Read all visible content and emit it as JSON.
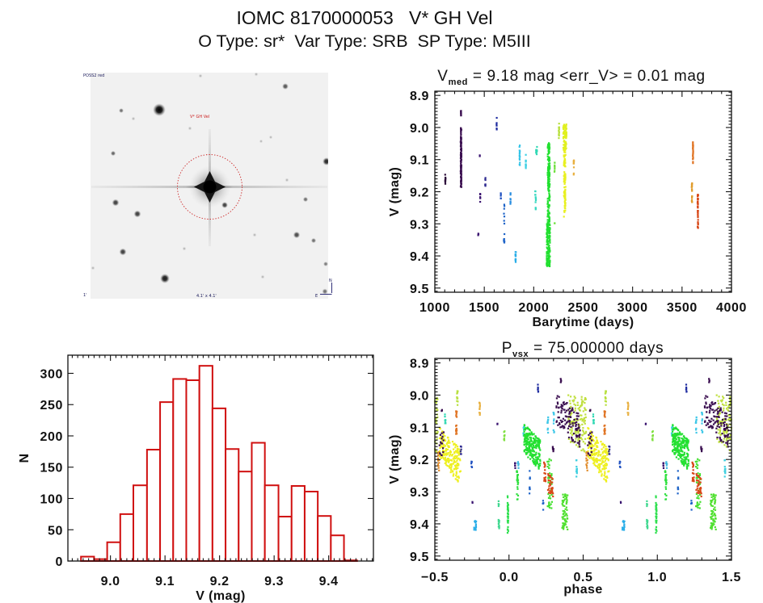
{
  "header": {
    "title": "IOMC 8170000053   V* GH Vel",
    "subtitle": "O Type: sr*  Var Type: SRB  SP Type: M5III"
  },
  "sky_image": {
    "survey_label": "POSS2 red",
    "target_label": "V* GH Vel",
    "scale_label": "1'",
    "fov_label": "4.1' x 4.1'",
    "compass_north": "N",
    "compass_east": "E",
    "target_circle_color": "#cc2222",
    "compass_color": "#1a1a6a"
  },
  "chart_data": [
    {
      "id": "light-curve",
      "type": "scatter",
      "title": {
        "main": "V",
        "sub": "med",
        "rest": " = 9.18 mag <err_V> = 0.01 mag"
      },
      "v_median": 9.18,
      "err_v_mean": 0.01,
      "xlabel": "Barytime (days)",
      "ylabel": "V (mag)",
      "xlim": [
        1000,
        4000
      ],
      "ylim": [
        8.887,
        9.513
      ],
      "y_inverted": true,
      "xticks": [
        1000,
        1500,
        2000,
        2500,
        3000,
        3500,
        4000
      ],
      "xtick_labels": [
        "1000",
        "1500",
        "2000",
        "2500",
        "3000",
        "3500",
        "4000"
      ],
      "x_minor": 100,
      "yticks": [
        8.9,
        9.0,
        9.1,
        9.2,
        9.3,
        9.4,
        9.5
      ],
      "ytick_labels": [
        "8.9",
        "9.0",
        "9.1",
        "9.2",
        "9.3",
        "9.4",
        "9.5"
      ],
      "y_minor": 0.01,
      "grid": false,
      "color_coding": "rainbow by observation time",
      "clusters": [
        {
          "t": [
            1104,
            1108
          ],
          "v": [
            9.146,
            9.176
          ],
          "color": "#2a0a38",
          "n": 10
        },
        {
          "t": [
            1263,
            1266
          ],
          "v": [
            8.942,
            8.966
          ],
          "color": "#3b0f50",
          "n": 8
        },
        {
          "t": [
            1261,
            1269
          ],
          "v": [
            8.997,
            9.187
          ],
          "color": "#3b0f50",
          "n": 110
        },
        {
          "t": [
            1453,
            1455
          ],
          "v": [
            9.085,
            9.092
          ],
          "color": "#3a1470",
          "n": 2
        },
        {
          "t": [
            1458,
            1460
          ],
          "v": [
            9.204,
            9.236
          ],
          "color": "#3a1470",
          "n": 7
        },
        {
          "t": [
            1438,
            1442
          ],
          "v": [
            9.33,
            9.336
          ],
          "color": "#3a1470",
          "n": 3
        },
        {
          "t": [
            1510,
            1512
          ],
          "v": [
            9.156,
            9.183
          ],
          "color": "#2e2a90",
          "n": 8
        },
        {
          "t": [
            1624,
            1626
          ],
          "v": [
            8.963,
            9.007
          ],
          "color": "#1f2ca0",
          "n": 6
        },
        {
          "t": [
            1667,
            1669
          ],
          "v": [
            9.204,
            9.222
          ],
          "color": "#1f50c0",
          "n": 5
        },
        {
          "t": [
            1698,
            1704
          ],
          "v": [
            9.236,
            9.362
          ],
          "color": "#1f64c8",
          "n": 16
        },
        {
          "t": [
            1764,
            1766
          ],
          "v": [
            9.197,
            9.24
          ],
          "color": "#2a8ee0",
          "n": 8
        },
        {
          "t": [
            1815,
            1820
          ],
          "v": [
            9.387,
            9.42
          ],
          "color": "#2aaee8",
          "n": 14
        },
        {
          "t": [
            1856,
            1860
          ],
          "v": [
            9.051,
            9.118
          ],
          "color": "#34c4e8",
          "n": 14
        },
        {
          "t": [
            1919,
            1922
          ],
          "v": [
            9.085,
            9.133
          ],
          "color": "#40d0e4",
          "n": 10
        },
        {
          "t": [
            2024,
            2034
          ],
          "v": [
            9.06,
            9.09
          ],
          "color": "#30d8b4",
          "n": 14
        },
        {
          "t": [
            2015,
            2022
          ],
          "v": [
            9.197,
            9.258
          ],
          "color": "#38d8c0",
          "n": 12
        },
        {
          "t": [
            2140,
            2162
          ],
          "v": [
            9.047,
            9.3
          ],
          "color": "#22e030",
          "n": 160
        },
        {
          "t": [
            2131,
            2165
          ],
          "v": [
            9.3,
            9.433
          ],
          "color": "#22e030",
          "n": 150
        },
        {
          "t": [
            2210,
            2213
          ],
          "v": [
            9.107,
            9.139
          ],
          "color": "#70e040",
          "n": 8
        },
        {
          "t": [
            2210,
            2213
          ],
          "v": [
            9.295,
            9.299
          ],
          "color": "#70e040",
          "n": 2
        },
        {
          "t": [
            2253,
            2258
          ],
          "v": [
            8.982,
            9.034
          ],
          "color": "#b8e040",
          "n": 14
        },
        {
          "t": [
            2298,
            2332
          ],
          "v": [
            8.99,
            9.07
          ],
          "color": "#e0f020",
          "n": 80
        },
        {
          "t": [
            2305,
            2322
          ],
          "v": [
            9.07,
            9.286
          ],
          "color": "#e8f020",
          "n": 90
        },
        {
          "t": [
            2403,
            2407
          ],
          "v": [
            9.096,
            9.149
          ],
          "color": "#e8b040",
          "n": 10
        },
        {
          "t": [
            3609,
            3613
          ],
          "v": [
            9.045,
            9.118
          ],
          "color": "#e07424",
          "n": 22
        },
        {
          "t": [
            3598,
            3602
          ],
          "v": [
            9.173,
            9.238
          ],
          "color": "#e09c2c",
          "n": 18
        },
        {
          "t": [
            3657,
            3663
          ],
          "v": [
            9.208,
            9.322
          ],
          "color": "#d84818",
          "n": 34
        }
      ]
    },
    {
      "id": "histogram",
      "type": "bar",
      "xlabel": "V (mag)",
      "ylabel": "N",
      "xlim": [
        8.922,
        9.482
      ],
      "ylim": [
        0,
        329
      ],
      "y_inverted": false,
      "xticks": [
        9.0,
        9.1,
        9.2,
        9.3,
        9.4
      ],
      "xtick_labels": [
        "9.0",
        "9.1",
        "9.2",
        "9.3",
        "9.4"
      ],
      "x_minor": 0.01,
      "yticks": [
        0,
        50,
        100,
        150,
        200,
        250,
        300
      ],
      "ytick_labels": [
        "0",
        "50",
        "100",
        "150",
        "200",
        "250",
        "300"
      ],
      "y_minor": null,
      "grid": false,
      "bar_color": "#d01010",
      "bin_edges": [
        8.946,
        8.97,
        8.994,
        9.018,
        9.042,
        9.067,
        9.091,
        9.115,
        9.139,
        9.163,
        9.187,
        9.211,
        9.235,
        9.259,
        9.283,
        9.308,
        9.332,
        9.356,
        9.38,
        9.404,
        9.428,
        9.452
      ],
      "values": [
        7,
        3,
        30,
        75,
        121,
        178,
        254,
        291,
        289,
        312,
        244,
        179,
        143,
        189,
        121,
        71,
        120,
        111,
        72,
        41,
        1
      ]
    },
    {
      "id": "phase-curve",
      "type": "scatter",
      "title": {
        "main": "P",
        "sub": "vsx",
        "rest": " = 75.000000 days"
      },
      "period_days": 75.0,
      "xlabel": "phase",
      "ylabel": "V (mag)",
      "xlim": [
        -0.5,
        1.5
      ],
      "ylim": [
        8.886,
        9.513
      ],
      "y_inverted": true,
      "xticks": [
        -0.5,
        0.0,
        0.5,
        1.0,
        1.5
      ],
      "xtick_labels": [
        "−0.5",
        "0.0",
        "0.5",
        "1.0",
        "1.5"
      ],
      "x_minor": 0.1,
      "yticks": [
        8.9,
        9.0,
        9.1,
        9.2,
        9.3,
        9.4,
        9.5
      ],
      "ytick_labels": [
        "8.9",
        "9.0",
        "9.1",
        "9.2",
        "9.3",
        "9.4",
        "9.5"
      ],
      "y_minor": 0.01,
      "grid": false,
      "phase_repeat": [
        -1,
        0,
        1
      ],
      "clusters": [
        {
          "phase": [
            -0.455,
            -0.447
          ],
          "v": [
            9.046,
            9.055
          ],
          "color": "#3b0f50",
          "n": 3
        },
        {
          "phase": [
            -0.47,
            -0.325
          ],
          "v_start": [
            9.1,
            9.19
          ],
          "v_end": [
            9.17,
            9.284
          ],
          "color": "#eef020",
          "n": 180
        },
        {
          "phase": [
            -0.47,
            -0.44
          ],
          "v": [
            9.108,
            9.188
          ],
          "color": "#3b0f50",
          "n": 16
        },
        {
          "phase": [
            -0.432,
            -0.424
          ],
          "v": [
            9.06,
            9.092
          ],
          "color": "#30d8b4",
          "n": 8
        },
        {
          "phase": [
            -0.48,
            -0.47
          ],
          "v": [
            9.176,
            9.243
          ],
          "color": "#e08a28",
          "n": 12
        },
        {
          "phase": [
            -0.358,
            -0.352
          ],
          "v": [
            9.049,
            9.121
          ],
          "color": "#e07424",
          "n": 18
        },
        {
          "phase": [
            -0.351,
            -0.345
          ],
          "v": [
            8.985,
            9.034
          ],
          "color": "#b8e040",
          "n": 12
        },
        {
          "phase": [
            -0.327,
            -0.321
          ],
          "v": [
            9.159,
            9.184
          ],
          "color": "#2e2a90",
          "n": 6
        },
        {
          "phase": [
            -0.2,
            -0.194
          ],
          "v": [
            9.021,
            9.063
          ],
          "color": "#e8b040",
          "n": 10
        },
        {
          "phase": [
            -0.081,
            -0.077
          ],
          "v": [
            9.088,
            9.092
          ],
          "color": "#3a1470",
          "n": 2
        },
        {
          "phase": [
            -0.035,
            -0.029
          ],
          "v": [
            9.111,
            9.142
          ],
          "color": "#80e040",
          "n": 8
        },
        {
          "phase": [
            -0.255,
            -0.249
          ],
          "v": [
            9.205,
            9.226
          ],
          "color": "#1f50c0",
          "n": 5
        },
        {
          "phase": [
            -0.25,
            -0.246
          ],
          "v": [
            9.331,
            9.336
          ],
          "color": "#3a1470",
          "n": 2
        },
        {
          "phase": [
            -0.236,
            -0.221
          ],
          "v": [
            9.389,
            9.422
          ],
          "color": "#2aaee8",
          "n": 14
        },
        {
          "phase": [
            -0.071,
            -0.065
          ],
          "v": [
            9.326,
            9.347
          ],
          "color": "#40d890",
          "n": 5
        },
        {
          "phase": [
            -0.071,
            -0.065
          ],
          "v": [
            9.385,
            9.418
          ],
          "color": "#40d890",
          "n": 10
        },
        {
          "phase": [
            -0.01,
            -0.004
          ],
          "v": [
            9.309,
            9.431
          ],
          "color": "#30e050",
          "n": 36
        },
        {
          "phase": [
            0.039,
            0.045
          ],
          "v": [
            9.205,
            9.234
          ],
          "color": "#3a1470",
          "n": 6
        },
        {
          "phase": [
            0.059,
            0.065
          ],
          "v": [
            9.205,
            9.234
          ],
          "color": "#40b8e0",
          "n": 5
        },
        {
          "phase": [
            0.052,
            0.062
          ],
          "v": [
            9.234,
            9.326
          ],
          "color": "#30e040",
          "n": 24
        },
        {
          "phase": [
            0.096,
            0.102
          ],
          "v": [
            9.088,
            9.126
          ],
          "color": "#40d0e8",
          "n": 8
        },
        {
          "phase": [
            0.102,
            0.211
          ],
          "v_start": [
            9.09,
            9.18
          ],
          "v_end": [
            9.14,
            9.235
          ],
          "color": "#22e030",
          "n": 220
        },
        {
          "phase": [
            0.136,
            0.142
          ],
          "v": [
            9.234,
            9.318
          ],
          "color": "#1f64c8",
          "n": 9
        },
        {
          "phase": [
            0.194,
            0.2
          ],
          "v": [
            8.967,
            9.009
          ],
          "color": "#1f2ca0",
          "n": 6
        },
        {
          "phase": [
            0.227,
            0.233
          ],
          "v": [
            9.322,
            9.36
          ],
          "color": "#1f64c8",
          "n": 5
        },
        {
          "phase": [
            0.259,
            0.265
          ],
          "v": [
            9.063,
            9.117
          ],
          "color": "#40c8e8",
          "n": 10
        },
        {
          "phase": [
            0.299,
            0.305
          ],
          "v": [
            9.05,
            9.117
          ],
          "color": "#40c8e8",
          "n": 10
        },
        {
          "phase": [
            0.258,
            0.292
          ],
          "v": [
            9.197,
            9.355
          ],
          "color": "#44e030",
          "n": 40
        },
        {
          "phase": [
            0.233,
            0.247
          ],
          "v": [
            9.209,
            9.268
          ],
          "color": "#d84818",
          "n": 18
        },
        {
          "phase": [
            0.262,
            0.298
          ],
          "v_start": [
            9.234,
            9.3
          ],
          "v_end": [
            9.26,
            9.318
          ],
          "color": "#d84818",
          "n": 30
        },
        {
          "phase": [
            0.358,
            0.396
          ],
          "v": [
            9.305,
            9.418
          ],
          "color": "#50e030",
          "n": 60
        },
        {
          "phase": [
            0.295,
            0.301
          ],
          "v": [
            9.151,
            9.18
          ],
          "color": "#3b0f50",
          "n": 6
        },
        {
          "phase": [
            0.4,
            0.52
          ],
          "v_start": [
            9.0,
            9.15
          ],
          "v_end": [
            9.0,
            9.18
          ],
          "color": "#c0e040",
          "n": 140
        },
        {
          "phase": [
            0.32,
            0.48
          ],
          "v_start": [
            8.99,
            9.09
          ],
          "v_end": [
            9.06,
            9.17
          ],
          "color": "#3b0f50",
          "n": 120
        },
        {
          "phase": [
            0.348,
            0.354
          ],
          "v": [
            8.946,
            8.962
          ],
          "color": "#3b0f50",
          "n": 4
        },
        {
          "phase": [
            0.453,
            0.459
          ],
          "v": [
            9.197,
            9.259
          ],
          "color": "#40d0e0",
          "n": 10
        }
      ]
    }
  ]
}
